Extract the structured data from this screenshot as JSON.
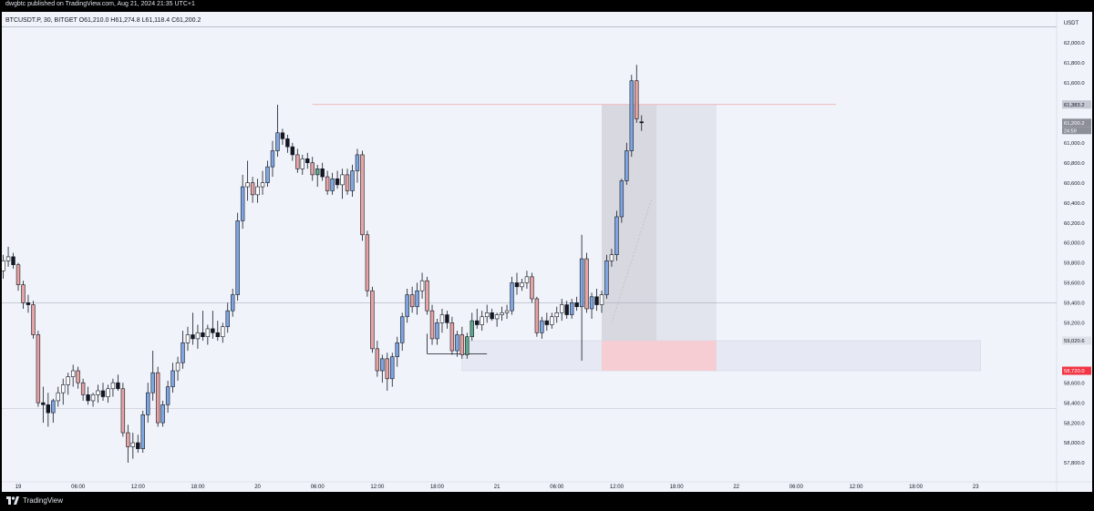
{
  "header": {
    "published_by": "dwgbtc published on TradingView.com, Aug 21, 2024 21:35 UTC+1",
    "symbol_line": "BTCUSDT.P, 30, BITGET  O61,210.0  H61,274.8  L61,118.4  C61,200.2"
  },
  "footer": {
    "brand": "TradingView"
  },
  "colors": {
    "background": "#f0f3fa",
    "up_body": "#7fa6e0",
    "down_body": "#e6a3a3",
    "neutral_up": "#ffffff",
    "neutral_down": "#131722",
    "green_body": "#5fa88a",
    "wick": "#131722",
    "resistance_line": "#f0b4b4",
    "zone_gray": "#d8d9e0",
    "zone_light": "#e2e4ee",
    "zone_red": "#f5cdd3",
    "last_price_tag": "#8c8f98",
    "low_tag": "#f23645"
  },
  "chart_data": {
    "type": "candlestick",
    "symbol": "BTCUSDT.P",
    "interval": "30",
    "exchange": "BITGET",
    "ohlc_last": {
      "open": 61210.0,
      "high": 61274.8,
      "low": 61118.4,
      "close": 61200.2
    },
    "y_axis": {
      "unit_label": "USDT",
      "ylim": [
        57680,
        62200
      ],
      "ticks": [
        62000,
        61800,
        61600,
        61400,
        61200,
        61000,
        60800,
        60600,
        60400,
        60200,
        60000,
        59800,
        59600,
        59400,
        59200,
        59000,
        58800,
        58600,
        58400,
        58200,
        58000,
        57800
      ],
      "tick_labels": [
        "62,000.0",
        "61,800.0",
        "61,600.0",
        "61,383.2",
        "61,200.2",
        "61,000.0",
        "60,800.0",
        "60,600.0",
        "60,400.0",
        "60,200.0",
        "60,000.0",
        "59,800.0",
        "59,600.0",
        "59,400.0",
        "59,200.0",
        "59,020.6",
        "58,720.0",
        "58,600.0",
        "58,400.0",
        "58,200.0",
        "58,000.0",
        "57,800.0"
      ],
      "tick_values": [
        62000,
        61800,
        61600,
        61383.2,
        61200.2,
        61000,
        60800,
        60600,
        60400,
        60200,
        60000,
        59800,
        59600,
        59400,
        59200,
        59020.6,
        58720,
        58600,
        58400,
        58200,
        58000,
        57800
      ],
      "countdown_label": "24:59"
    },
    "x_axis": {
      "labels": [
        "19",
        "06:00",
        "12:00",
        "18:00",
        "20",
        "06:00",
        "12:00",
        "18:00",
        "21",
        "06:00",
        "12:00",
        "18:00",
        "22",
        "06:00",
        "12:00",
        "18:00",
        "23"
      ],
      "label_index": [
        0,
        12,
        24,
        36,
        48,
        60,
        72,
        84,
        96,
        108,
        120,
        132,
        144,
        156,
        168,
        180,
        192
      ]
    },
    "first_index": -5,
    "candles": [
      [
        59660,
        59770,
        59520,
        59560
      ],
      [
        59560,
        59780,
        59540,
        59720
      ],
      [
        59720,
        59880,
        59640,
        59820
      ],
      [
        59820,
        59960,
        59760,
        59860
      ],
      [
        59860,
        59900,
        59740,
        59780
      ],
      [
        59780,
        59800,
        59520,
        59580
      ],
      [
        59580,
        59620,
        59340,
        59400
      ],
      [
        59400,
        59480,
        59300,
        59380
      ],
      [
        59380,
        59420,
        59040,
        59080
      ],
      [
        59080,
        59120,
        58360,
        58400
      ],
      [
        58400,
        58560,
        58200,
        58380
      ],
      [
        58380,
        58500,
        58160,
        58300
      ],
      [
        58300,
        58440,
        58200,
        58420
      ],
      [
        58420,
        58560,
        58360,
        58500
      ],
      [
        58500,
        58640,
        58380,
        58580
      ],
      [
        58580,
        58700,
        58480,
        58660
      ],
      [
        58660,
        58780,
        58560,
        58720
      ],
      [
        58720,
        58760,
        58540,
        58600
      ],
      [
        58600,
        58640,
        58420,
        58480
      ],
      [
        58480,
        58560,
        58380,
        58420
      ],
      [
        58420,
        58500,
        58360,
        58480
      ],
      [
        58480,
        58580,
        58400,
        58520
      ],
      [
        58520,
        58600,
        58420,
        58460
      ],
      [
        58460,
        58580,
        58400,
        58540
      ],
      [
        58540,
        58640,
        58460,
        58600
      ],
      [
        58600,
        58680,
        58520,
        58540
      ],
      [
        58540,
        58600,
        58060,
        58100
      ],
      [
        58100,
        58180,
        57800,
        57960
      ],
      [
        57960,
        58100,
        57840,
        58000
      ],
      [
        58000,
        58080,
        57900,
        57940
      ],
      [
        57940,
        58320,
        57900,
        58280
      ],
      [
        58280,
        58600,
        58200,
        58500
      ],
      [
        58500,
        58920,
        58420,
        58700
      ],
      [
        58700,
        58760,
        58160,
        58200
      ],
      [
        58200,
        58420,
        58160,
        58380
      ],
      [
        58380,
        58620,
        58300,
        58560
      ],
      [
        58560,
        58800,
        58500,
        58720
      ],
      [
        58720,
        58860,
        58620,
        58800
      ],
      [
        58800,
        59120,
        58740,
        59000
      ],
      [
        59000,
        59160,
        58920,
        59080
      ],
      [
        59080,
        59300,
        58980,
        59040
      ],
      [
        59040,
        59180,
        58940,
        59100
      ],
      [
        59100,
        59320,
        59020,
        59060
      ],
      [
        59060,
        59180,
        58980,
        59140
      ],
      [
        59140,
        59320,
        59040,
        59100
      ],
      [
        59100,
        59220,
        59020,
        59060
      ],
      [
        59060,
        59200,
        59000,
        59160
      ],
      [
        59160,
        59400,
        59100,
        59320
      ],
      [
        59320,
        59540,
        59260,
        59480
      ],
      [
        59480,
        60300,
        59420,
        60220
      ],
      [
        60220,
        60680,
        60140,
        60560
      ],
      [
        60560,
        60820,
        60420,
        60600
      ],
      [
        60600,
        60660,
        60400,
        60480
      ],
      [
        60480,
        60640,
        60400,
        60560
      ],
      [
        60560,
        60720,
        60480,
        60600
      ],
      [
        60600,
        60820,
        60560,
        60760
      ],
      [
        60760,
        61020,
        60660,
        60920
      ],
      [
        60920,
        61380,
        60860,
        61100
      ],
      [
        61100,
        61140,
        60980,
        61040
      ],
      [
        61040,
        61080,
        60900,
        60960
      ],
      [
        60960,
        61000,
        60820,
        60880
      ],
      [
        60880,
        60940,
        60700,
        60740
      ],
      [
        60740,
        60880,
        60680,
        60840
      ],
      [
        60840,
        60900,
        60740,
        60800
      ],
      [
        60800,
        60860,
        60620,
        60680
      ],
      [
        60680,
        60780,
        60560,
        60740
      ],
      [
        60740,
        60800,
        60620,
        60660
      ],
      [
        60660,
        60720,
        60480,
        60520
      ],
      [
        60520,
        60700,
        60480,
        60640
      ],
      [
        60640,
        60720,
        60540,
        60580
      ],
      [
        60580,
        60740,
        60440,
        60680
      ],
      [
        60680,
        60740,
        60480,
        60520
      ],
      [
        60520,
        60780,
        60460,
        60720
      ],
      [
        60720,
        60940,
        60600,
        60880
      ],
      [
        60880,
        60920,
        60020,
        60080
      ],
      [
        60080,
        60120,
        59460,
        59520
      ],
      [
        59520,
        59560,
        58900,
        58940
      ],
      [
        58940,
        59020,
        58660,
        58720
      ],
      [
        58720,
        58880,
        58600,
        58840
      ],
      [
        58840,
        58900,
        58520,
        58640
      ],
      [
        58640,
        58900,
        58560,
        58860
      ],
      [
        58860,
        59060,
        58760,
        59000
      ],
      [
        59000,
        59300,
        58920,
        59260
      ],
      [
        59260,
        59540,
        59200,
        59480
      ],
      [
        59480,
        59560,
        59300,
        59360
      ],
      [
        59360,
        59600,
        59280,
        59520
      ],
      [
        59520,
        59700,
        59440,
        59620
      ],
      [
        59620,
        59660,
        59280,
        59320
      ],
      [
        59320,
        59380,
        58980,
        59040
      ],
      [
        59040,
        59240,
        58980,
        59200
      ],
      [
        59200,
        59340,
        59100,
        59280
      ],
      [
        59280,
        59320,
        59140,
        59200
      ],
      [
        59200,
        59260,
        58880,
        58920
      ],
      [
        58920,
        59120,
        58860,
        59080
      ],
      [
        59080,
        59160,
        58840,
        58880
      ],
      [
        58880,
        59100,
        58840,
        59060
      ],
      [
        59060,
        59300,
        59020,
        59220
      ],
      [
        59220,
        59340,
        59140,
        59180
      ],
      [
        59180,
        59320,
        59120,
        59260
      ],
      [
        59260,
        59380,
        59200,
        59300
      ],
      [
        59300,
        59340,
        59220,
        59240
      ],
      [
        59240,
        59300,
        59160,
        59280
      ],
      [
        59280,
        59360,
        59220,
        59300
      ],
      [
        59300,
        59380,
        59240,
        59320
      ],
      [
        59320,
        59660,
        59280,
        59600
      ],
      [
        59600,
        59700,
        59480,
        59560
      ],
      [
        59560,
        59640,
        59520,
        59600
      ],
      [
        59600,
        59720,
        59540,
        59660
      ],
      [
        59660,
        59700,
        59400,
        59440
      ],
      [
        59440,
        59460,
        59060,
        59100
      ],
      [
        59100,
        59260,
        59040,
        59220
      ],
      [
        59220,
        59300,
        59120,
        59180
      ],
      [
        59180,
        59300,
        59140,
        59260
      ],
      [
        59260,
        59360,
        59200,
        59300
      ],
      [
        59300,
        59440,
        59220,
        59380
      ],
      [
        59380,
        59420,
        59240,
        59280
      ],
      [
        59280,
        59440,
        59240,
        59400
      ],
      [
        59400,
        59460,
        59320,
        59360
      ],
      [
        59360,
        60080,
        58820,
        59840
      ],
      [
        59840,
        59900,
        59300,
        59340
      ],
      [
        59340,
        59500,
        59240,
        59460
      ],
      [
        59460,
        59540,
        59320,
        59380
      ],
      [
        59380,
        59520,
        59300,
        59480
      ],
      [
        59480,
        59880,
        59440,
        59820
      ],
      [
        59820,
        59940,
        59760,
        59880
      ],
      [
        59880,
        60320,
        59820,
        60260
      ],
      [
        60260,
        60640,
        60200,
        60620
      ],
      [
        60620,
        61000,
        60580,
        60920
      ],
      [
        60920,
        61680,
        60860,
        61620
      ],
      [
        61620,
        61780,
        61200,
        61240
      ],
      [
        61210,
        61275,
        61118,
        61200
      ]
    ],
    "annotations": {
      "resistance_level": {
        "price": 61383.2,
        "from_index": 59,
        "to_index": 164
      },
      "support_line": {
        "price": 59400
      },
      "support_line_lower": {
        "price": 58340
      },
      "long_position": {
        "entry_start_index": 117,
        "entry_mid_index": 128,
        "end_index": 140,
        "target": 61383.2,
        "entry": 59020.6,
        "stop": 58720.0
      },
      "demand_zone": {
        "top": 59020.6,
        "bottom": 58720.0,
        "from_index": 89,
        "to_index": 193
      },
      "range_low_bracket": {
        "price": 58890,
        "from_index": 82,
        "to_index": 94,
        "tick_index": 90
      },
      "dashed_path": [
        [
          119,
          59200
        ],
        [
          127,
          60440
        ]
      ]
    }
  }
}
